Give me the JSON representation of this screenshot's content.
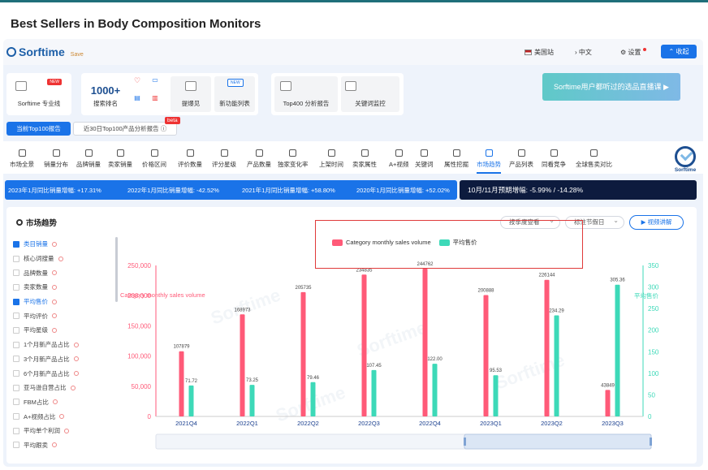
{
  "page_title": "Best Sellers in Body Composition Monitors",
  "header": {
    "logo_text": "Sorftime",
    "logo_sub": "Save",
    "marketplace": "美国站",
    "language": "中文",
    "settings": "设置",
    "collapse_btn": "收起"
  },
  "tools": [
    {
      "label": "Sorftime 专业线",
      "badge": "NEW"
    },
    {
      "label": "搜索排名",
      "big": "1000+"
    },
    {
      "label": "提爆见"
    },
    {
      "label": "新功能列表",
      "badge": "NEW"
    },
    {
      "label": "Top400 分析报告"
    },
    {
      "label": "关键词监控"
    }
  ],
  "promo_text": "Sorftime用户都听过的选品直播课",
  "report_buttons": {
    "primary": "当前Top100报告",
    "secondary": "近30日Top100产品分析报告",
    "beta": "beta"
  },
  "tabs": [
    "市场全景",
    "销量分布",
    "品牌销量",
    "卖家销量",
    "价格区间",
    "评价数量",
    "评分星级",
    "产品数量",
    "独家变化率",
    "上架时间",
    "卖家属性",
    "A+视频",
    "关键词",
    "属性挖掘",
    "市场趋势",
    "产品列表",
    "同看竞争",
    "全球售卖对比"
  ],
  "active_tab": "市场趋势",
  "badge_text": "Sorftime",
  "growth": [
    "2023年1月同比销量增幅: +17.31%",
    "2022年1月同比销量增幅: -42.52%",
    "2021年1月同比销量增幅: +58.80%",
    "2020年1月同比销量增幅: +52.02%"
  ],
  "forecast": "10月/11月预期增幅: -5.99% / -14.28%",
  "panel": {
    "title": "市场趋势",
    "select_period": "按季度查看",
    "select_holiday": "标注节假日",
    "video_btn": "视频讲解",
    "watermark": "Sorftime"
  },
  "metrics": [
    {
      "label": "类目销量",
      "checked": true
    },
    {
      "label": "核心词搜量",
      "checked": false
    },
    {
      "label": "品牌数量",
      "checked": false
    },
    {
      "label": "卖家数量",
      "checked": false
    },
    {
      "label": "平均售价",
      "checked": true
    },
    {
      "label": "平均评价",
      "checked": false
    },
    {
      "label": "平均星级",
      "checked": false
    },
    {
      "label": "1个月新产品占比",
      "checked": false
    },
    {
      "label": "3个月新产品占比",
      "checked": false
    },
    {
      "label": "6个月新产品占比",
      "checked": false
    },
    {
      "label": "亚马逊自营占比",
      "checked": false
    },
    {
      "label": "FBM占比",
      "checked": false
    },
    {
      "label": "A+视频占比",
      "checked": false
    },
    {
      "label": "平均单个利润",
      "checked": false
    },
    {
      "label": "平均跟卖",
      "checked": false
    }
  ],
  "chart_data": {
    "type": "bar",
    "categories": [
      "2021Q4",
      "2022Q1",
      "2022Q2",
      "2022Q3",
      "2022Q4",
      "2023Q1",
      "2023Q2",
      "2023Q3"
    ],
    "series": [
      {
        "name": "Category monthly sales volume",
        "axis": "left",
        "color": "#ff5a78",
        "values": [
          107879,
          168973,
          205735,
          234835,
          244762,
          200888,
          226144,
          43849
        ]
      },
      {
        "name": "平均售价",
        "axis": "right",
        "color": "#3dd9b8",
        "values": [
          71.72,
          73.25,
          79.46,
          107.45,
          122.0,
          95.53,
          234.29,
          305.36
        ]
      }
    ],
    "left_axis_title": "Category monthly sales volume",
    "right_axis_title": "平均售价",
    "left_ticks": [
      "0",
      "50,000",
      "100,000",
      "150,000",
      "200,000",
      "250,000"
    ],
    "right_ticks": [
      "0",
      "50",
      "100",
      "150",
      "200",
      "250",
      "300",
      "350"
    ],
    "ylim_left": [
      0,
      250000
    ],
    "ylim_right": [
      0,
      350
    ],
    "value_labels_left": [
      "107879",
      "168973",
      "205735",
      "234835",
      "244762",
      "200888",
      "226144",
      "43849"
    ],
    "value_labels_right": [
      "71.72",
      "73.25",
      "79.46",
      "107.45",
      "122.00",
      "95.53",
      "234.29",
      "305.36"
    ],
    "legend_position": "top",
    "grid": false
  }
}
